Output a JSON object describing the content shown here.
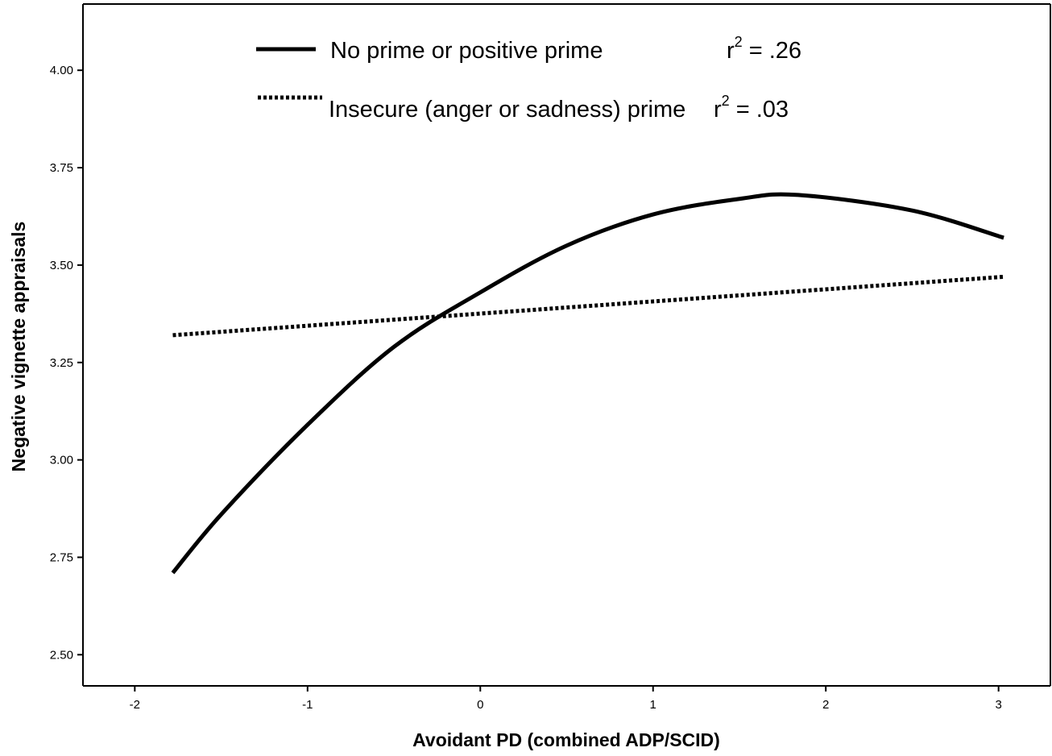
{
  "chart_data": {
    "type": "line",
    "xlabel": "Avoidant PD (combined ADP/SCID)",
    "ylabel": "Negative vignette appraisals",
    "xlim": [
      -2.3,
      3.3
    ],
    "ylim": [
      2.42,
      4.17
    ],
    "x_ticks": [
      -2,
      -1,
      0,
      1,
      2,
      3
    ],
    "x_tick_labels": [
      "-2",
      "-1",
      "0",
      "1",
      "2",
      "3"
    ],
    "y_ticks": [
      2.5,
      2.75,
      3.0,
      3.25,
      3.5,
      3.75,
      4.0
    ],
    "y_tick_labels": [
      "2.50",
      "2.75",
      "3.00",
      "3.25",
      "3.50",
      "3.75",
      "4.00"
    ],
    "grid": false,
    "legend_position": "top",
    "series": [
      {
        "name": "No prime or positive prime",
        "r2_label": "r",
        "r2_sup": "2",
        "r2_value": " = .26",
        "line_style": "solid",
        "color": "#000000",
        "x": [
          -1.78,
          -1.5,
          -1.0,
          -0.5,
          0.0,
          0.5,
          1.0,
          1.5,
          1.84,
          2.5,
          3.03
        ],
        "y": [
          2.71,
          2.86,
          3.09,
          3.29,
          3.43,
          3.55,
          3.63,
          3.67,
          3.68,
          3.64,
          3.57
        ]
      },
      {
        "name": "Insecure (anger or sadness) prime",
        "r2_label": "r",
        "r2_sup": "2",
        "r2_value": " = .03",
        "line_style": "dotted",
        "color": "#000000",
        "x": [
          -1.78,
          3.03
        ],
        "y": [
          3.32,
          3.47
        ]
      }
    ]
  }
}
